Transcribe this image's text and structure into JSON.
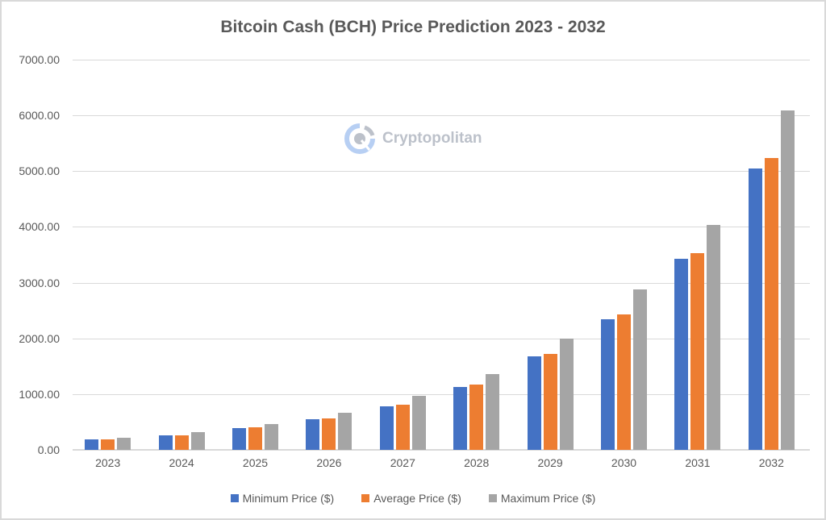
{
  "chart_data": {
    "type": "bar",
    "title": "Bitcoin Cash (BCH) Price Prediction 2023 - 2032",
    "xlabel": "",
    "ylabel": "",
    "ylim": [
      0,
      7000
    ],
    "yticks": [
      "0.00",
      "1000.00",
      "2000.00",
      "3000.00",
      "4000.00",
      "5000.00",
      "6000.00",
      "7000.00"
    ],
    "grid": true,
    "legend_position": "bottom",
    "categories": [
      "2023",
      "2024",
      "2025",
      "2026",
      "2027",
      "2028",
      "2029",
      "2030",
      "2031",
      "2032"
    ],
    "series": [
      {
        "name": "Minimum Price ($)",
        "color": "#4472c4",
        "values": [
          185,
          265,
          385,
          555,
          775,
          1125,
          1675,
          2340,
          3425,
          5045
        ]
      },
      {
        "name": "Average Price ($)",
        "color": "#ed7d31",
        "values": [
          185,
          265,
          400,
          570,
          805,
          1170,
          1720,
          2425,
          3530,
          5235
        ]
      },
      {
        "name": "Maximum Price ($)",
        "color": "#a5a5a5",
        "values": [
          215,
          315,
          460,
          665,
          965,
          1355,
          1995,
          2875,
          4035,
          6085
        ]
      }
    ]
  },
  "watermark": {
    "text": "Cryptopolitan",
    "icon": "cryptopolitan-logo-icon"
  }
}
